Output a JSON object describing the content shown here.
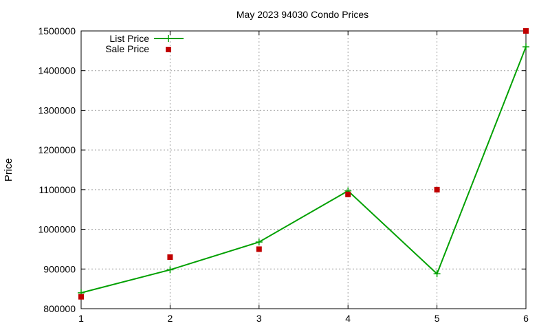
{
  "chart_data": {
    "type": "line",
    "title": "May 2023 94030 Condo Prices",
    "xlabel": "",
    "ylabel": "Price",
    "xlim": [
      1,
      6
    ],
    "ylim": [
      800000,
      1500000
    ],
    "x_ticks": [
      "1",
      "2",
      "3",
      "4",
      "5",
      "6"
    ],
    "y_ticks": [
      "800000",
      "900000",
      "1000000",
      "1100000",
      "1200000",
      "1300000",
      "1400000",
      "1500000"
    ],
    "grid": true,
    "legend_position": "top-left",
    "series": [
      {
        "name": "List Price",
        "style": "line-with-plus-markers",
        "color": "#00a000",
        "x": [
          1,
          2,
          3,
          4,
          5,
          6
        ],
        "y": [
          840000,
          898000,
          968000,
          1097000,
          888000,
          1460000
        ]
      },
      {
        "name": "Sale Price",
        "style": "square-markers",
        "color": "#c00000",
        "x": [
          1,
          2,
          3,
          4,
          5,
          6
        ],
        "y": [
          830000,
          930000,
          950000,
          1088000,
          1100000,
          1500000
        ]
      }
    ]
  }
}
